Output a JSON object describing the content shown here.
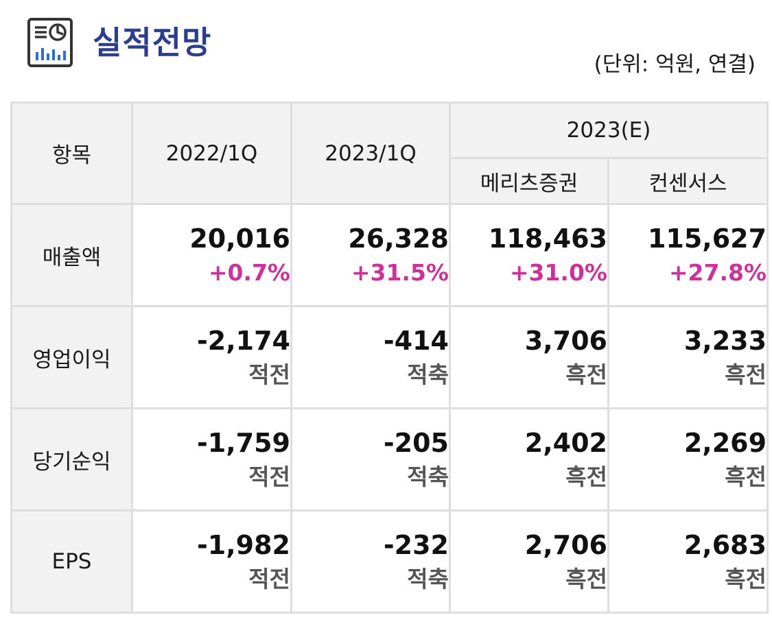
{
  "header": {
    "title": "실적전망",
    "unit_note": "(단위: 억원, 연결)",
    "icon": "report-chart-icon",
    "icon_color": "#2b3d8f"
  },
  "table": {
    "col_item": "항목",
    "col_2022q1": "2022/1Q",
    "col_2023q1": "2023/1Q",
    "col_2023e": "2023(E)",
    "col_meritz": "메리츠증권",
    "col_consensus": "컨센서스",
    "rows": [
      {
        "label": "매출액",
        "cells": [
          {
            "value": "20,016",
            "sub": "+0.7%"
          },
          {
            "value": "26,328",
            "sub": "+31.5%"
          },
          {
            "value": "118,463",
            "sub": "+31.0%"
          },
          {
            "value": "115,627",
            "sub": "+27.8%"
          }
        ]
      },
      {
        "label": "영업이익",
        "cells": [
          {
            "value": "-2,174",
            "sub": "적전"
          },
          {
            "value": "-414",
            "sub": "적축"
          },
          {
            "value": "3,706",
            "sub": "흑전"
          },
          {
            "value": "3,233",
            "sub": "흑전"
          }
        ]
      },
      {
        "label": "당기순익",
        "cells": [
          {
            "value": "-1,759",
            "sub": "적전"
          },
          {
            "value": "-205",
            "sub": "적축"
          },
          {
            "value": "2,402",
            "sub": "흑전"
          },
          {
            "value": "2,269",
            "sub": "흑전"
          }
        ]
      },
      {
        "label": "EPS",
        "cells": [
          {
            "value": "-1,982",
            "sub": "적전"
          },
          {
            "value": "-232",
            "sub": "적축"
          },
          {
            "value": "2,706",
            "sub": "흑전"
          },
          {
            "value": "2,683",
            "sub": "흑전"
          }
        ]
      }
    ]
  },
  "colors": {
    "header_bg": "#f2f2f2",
    "border": "#dedede",
    "percent_change": "#cc3399",
    "status_text": "#555555"
  }
}
